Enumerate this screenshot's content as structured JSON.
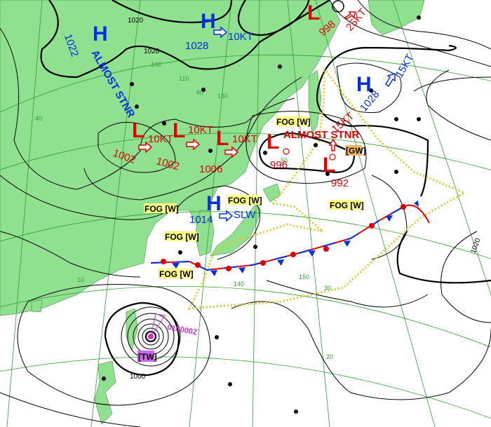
{
  "map": {
    "highs": [
      {
        "symbol": "H",
        "pressure": "1022",
        "note": "ALMOST STNR"
      },
      {
        "symbol": "H",
        "pressure": "1028",
        "motion": "10KT"
      },
      {
        "symbol": "H",
        "pressure": "1028",
        "motion": "15KT"
      },
      {
        "symbol": "H",
        "pressure": "1014",
        "motion": "SLW"
      }
    ],
    "lows": [
      {
        "symbol": "L",
        "pressure": "998",
        "motion": "25KT"
      },
      {
        "symbol": "L",
        "pressure": "1002",
        "motion": "10KT"
      },
      {
        "symbol": "L",
        "pressure": "1002",
        "motion": "10KT"
      },
      {
        "symbol": "L",
        "pressure": "1006",
        "motion": "10KT"
      },
      {
        "symbol": "L",
        "pressure": "996",
        "note": "ALMOST STNR"
      },
      {
        "symbol": "L",
        "pressure": "992",
        "motion": "15KT",
        "warning": "[GW]"
      }
    ],
    "typhoon": {
      "warning": "[TW]",
      "forecast_time": "010000Z"
    },
    "fog_warnings": [
      "FOG [W]",
      "FOG [W]",
      "FOG [W]",
      "FOG [W]",
      "FOG [W]",
      "FOG [W]"
    ],
    "isobar_labels": [
      "1020",
      "1020",
      "1020",
      "1000"
    ],
    "grid_labels": [
      "140",
      "150",
      "130",
      "110",
      "100",
      "50",
      "40",
      "30",
      "20",
      "10",
      "60"
    ],
    "colors": {
      "land": "#8fe08f",
      "sea": "#ffffff",
      "high": "#0030e0",
      "low": "#e00000",
      "warning_area": "#e0d040",
      "typhoon": "#cc33cc",
      "fog_bg": "#ffff80",
      "gw_bg": "#f0b860"
    }
  }
}
